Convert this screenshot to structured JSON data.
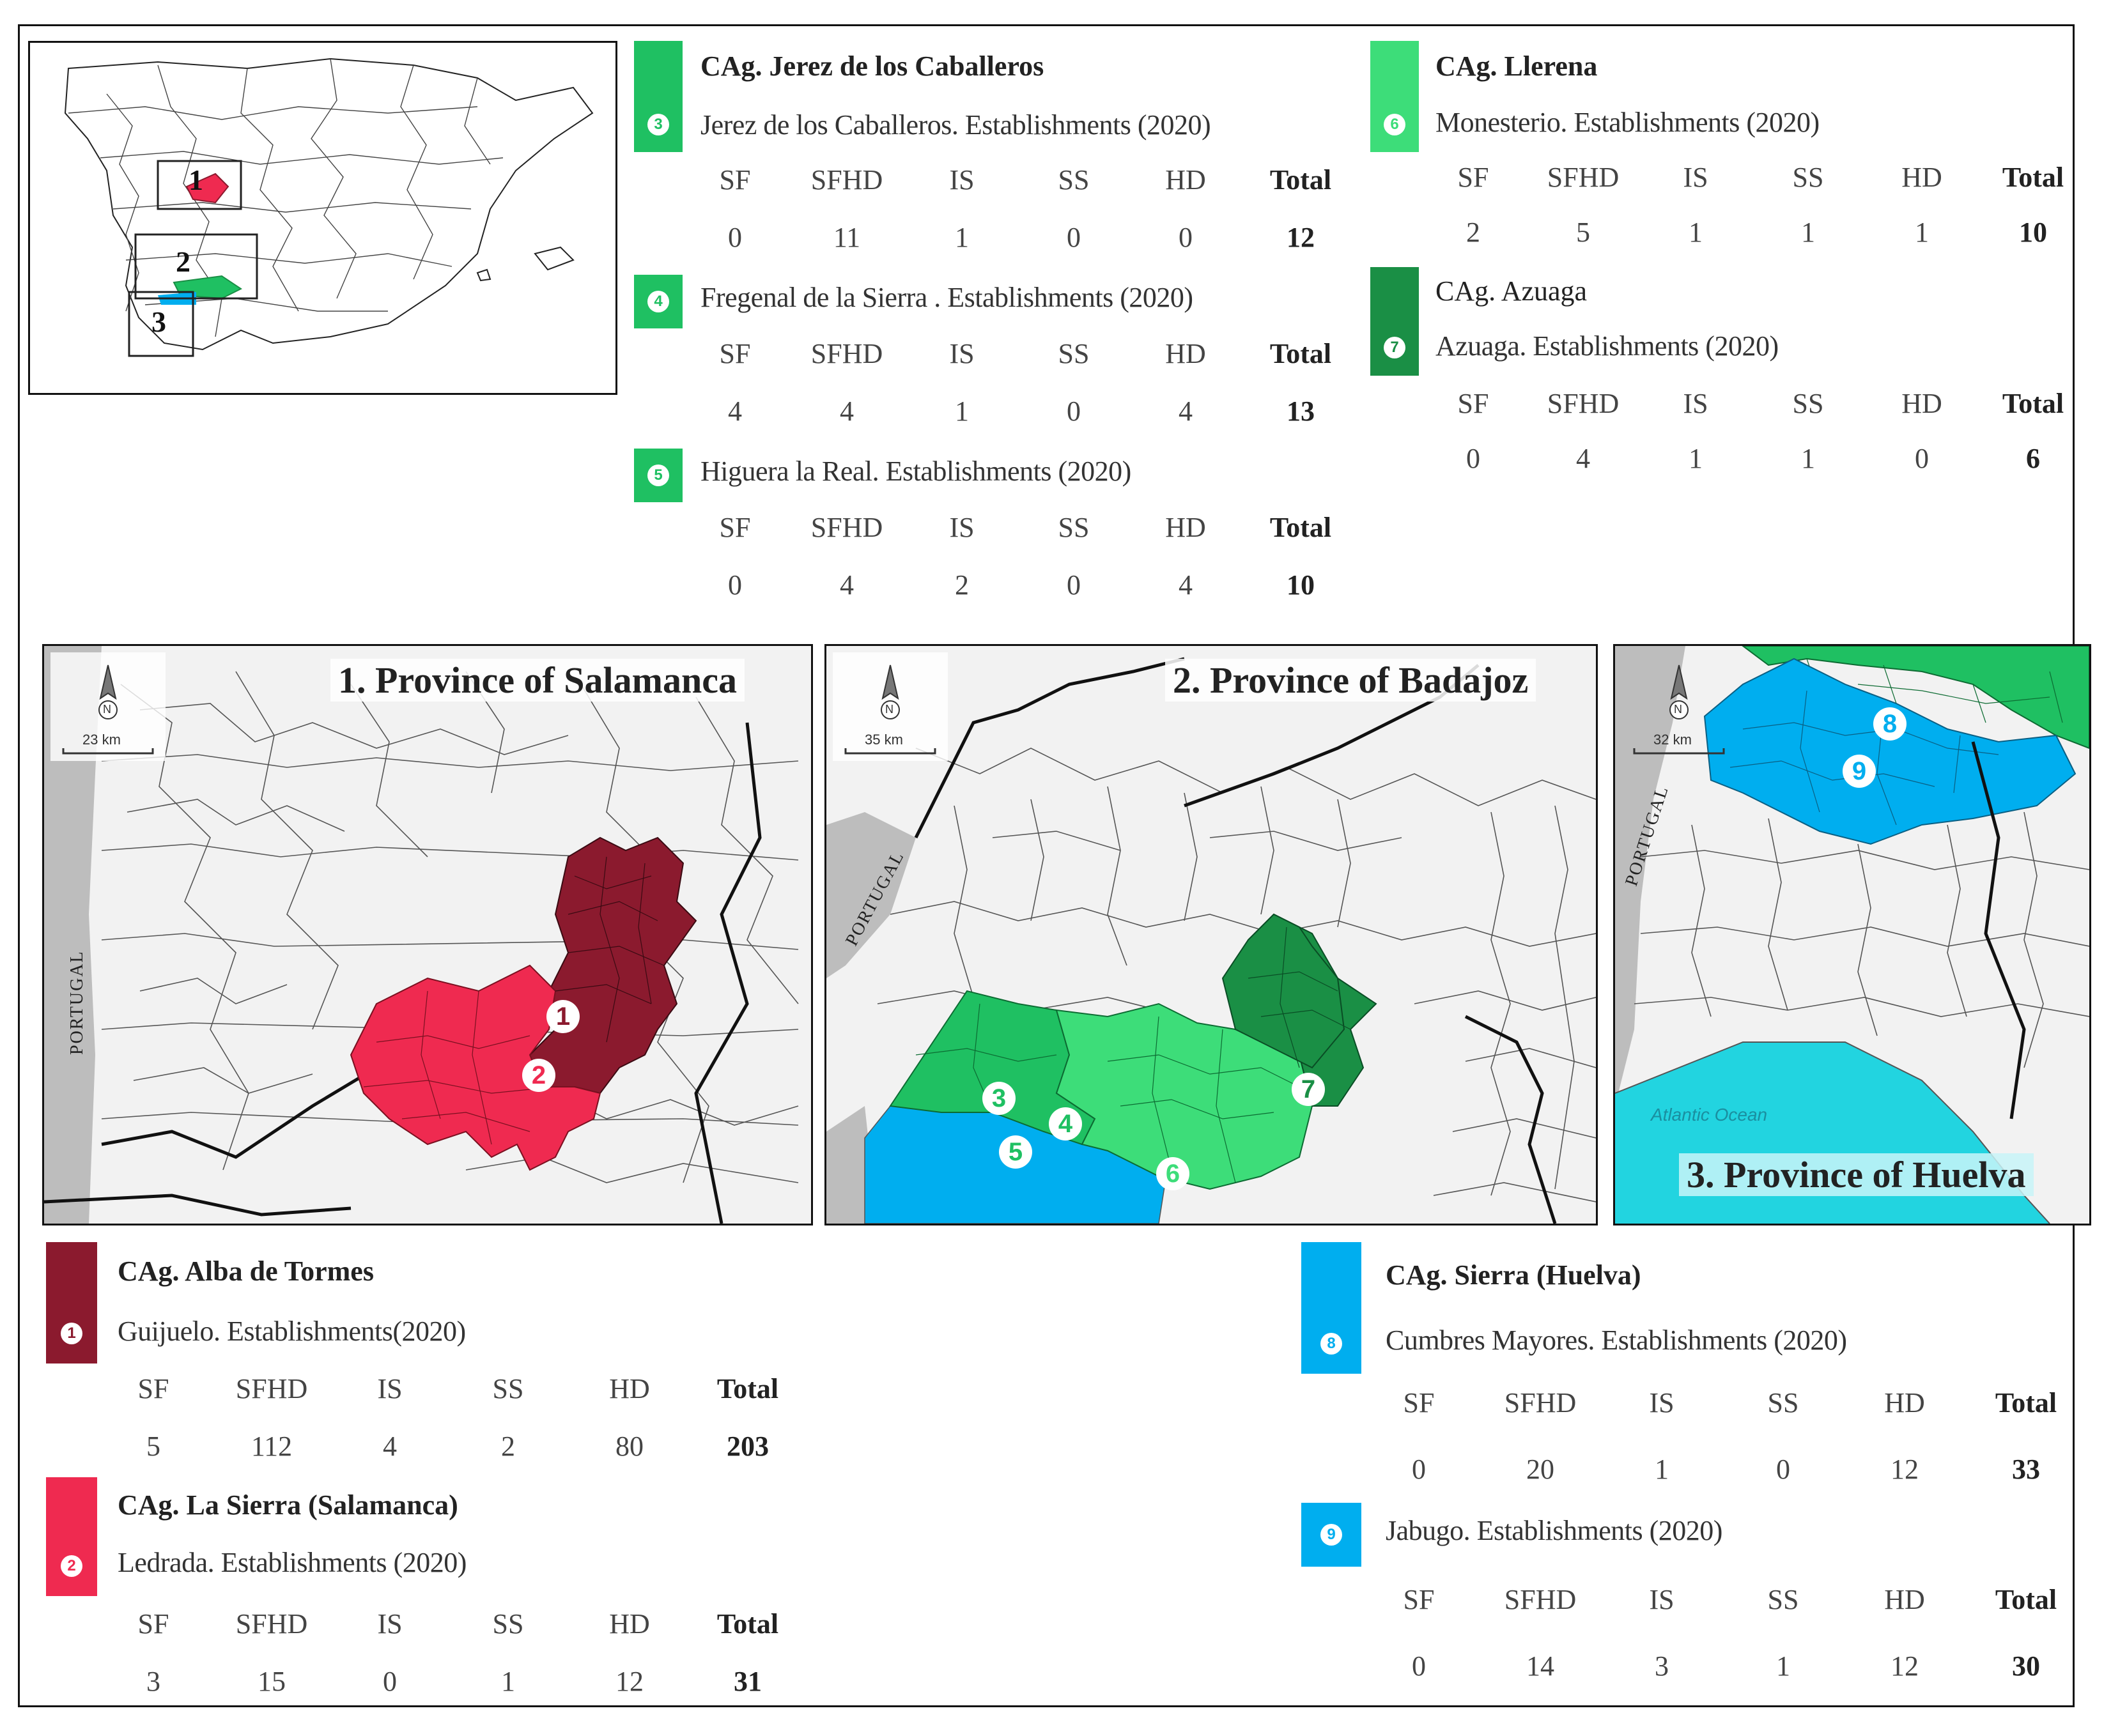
{
  "colors": {
    "alba": "#8b1a2e",
    "lasierra": "#ef2a50",
    "jerez": "#1fc062",
    "llerena": "#3ddd79",
    "azuaga": "#1a8f45",
    "huelva": "#00aeef",
    "ocean": "#22d4e0"
  },
  "overview_map": {
    "labels": [
      "1",
      "2",
      "3"
    ]
  },
  "headers": [
    "SF",
    "SFHD",
    "IS",
    "SS",
    "HD",
    "Total"
  ],
  "groups": {
    "jerez": {
      "title": "CAg. Jerez de los Caballeros",
      "entries": [
        {
          "badge": "3",
          "subtitle": "Jerez de los Caballeros. Establishments (2020)",
          "values": [
            "0",
            "11",
            "1",
            "0",
            "0",
            "12"
          ]
        },
        {
          "badge": "4",
          "subtitle": "Fregenal de la Sierra . Establishments (2020)",
          "values": [
            "4",
            "4",
            "1",
            "0",
            "4",
            "13"
          ]
        },
        {
          "badge": "5",
          "subtitle": "Higuera la Real. Establishments (2020)",
          "values": [
            "0",
            "4",
            "2",
            "0",
            "4",
            "10"
          ]
        }
      ]
    },
    "llerena": {
      "title": "CAg. Llerena",
      "entries": [
        {
          "badge": "6",
          "subtitle": "Monesterio. Establishments (2020)",
          "values": [
            "2",
            "5",
            "1",
            "1",
            "1",
            "10"
          ]
        }
      ]
    },
    "azuaga": {
      "title": "CAg. Azuaga",
      "entries": [
        {
          "badge": "7",
          "subtitle": "Azuaga. Establishments (2020)",
          "values": [
            "0",
            "4",
            "1",
            "1",
            "0",
            "6"
          ]
        }
      ]
    },
    "alba": {
      "title": "CAg. Alba de Tormes",
      "entries": [
        {
          "badge": "1",
          "subtitle": "Guijuelo. Establishments(2020)",
          "values": [
            "5",
            "112",
            "4",
            "2",
            "80",
            "203"
          ]
        }
      ]
    },
    "lasierra": {
      "title": "CAg. La Sierra (Salamanca)",
      "entries": [
        {
          "badge": "2",
          "subtitle": "Ledrada. Establishments (2020)",
          "values": [
            "3",
            "15",
            "0",
            "1",
            "12",
            "31"
          ]
        }
      ]
    },
    "huelva": {
      "title": "CAg. Sierra (Huelva)",
      "entries": [
        {
          "badge": "8",
          "subtitle": "Cumbres Mayores. Establishments (2020)",
          "values": [
            "0",
            "20",
            "1",
            "0",
            "12",
            "33"
          ]
        },
        {
          "badge": "9",
          "subtitle": "Jabugo. Establishments (2020)",
          "values": [
            "0",
            "14",
            "3",
            "1",
            "12",
            "30"
          ]
        }
      ]
    }
  },
  "maps": {
    "salamanca": {
      "title": "1. Province of Salamanca",
      "country": "PORTUGAL",
      "scale": "23 km",
      "north": "N",
      "markers": [
        "1",
        "2"
      ]
    },
    "badajoz": {
      "title": "2. Province of Badajoz",
      "country": "PORTUGAL",
      "scale": "35 km",
      "north": "N",
      "markers": [
        "3",
        "4",
        "5",
        "6",
        "7"
      ]
    },
    "huelva": {
      "title": "3. Province of Huelva",
      "country": "PORTUGAL",
      "scale": "32 km",
      "north": "N",
      "ocean": "Atlantic Ocean",
      "markers": [
        "8",
        "9"
      ]
    }
  }
}
